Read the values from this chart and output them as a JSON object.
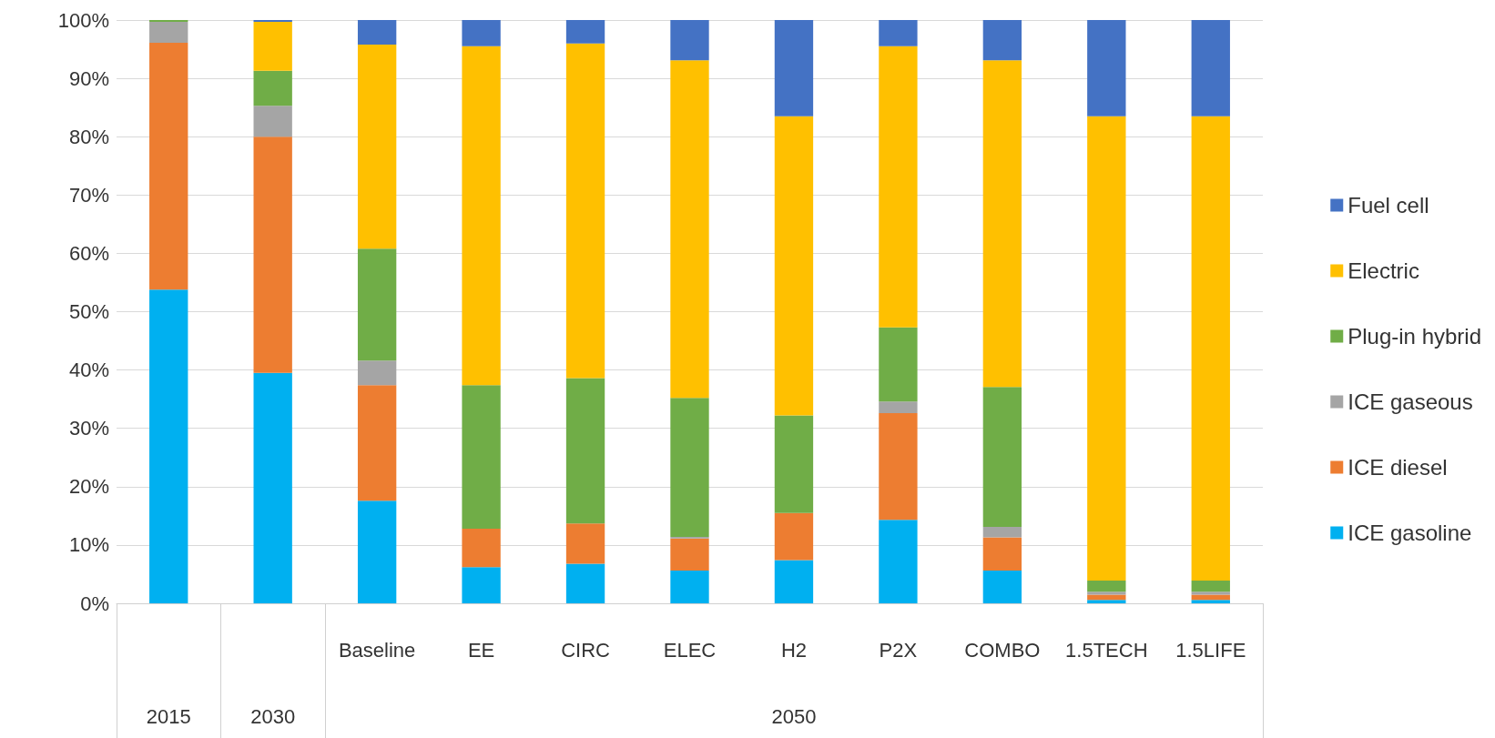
{
  "chart_data": {
    "type": "bar",
    "stacked": true,
    "grid": "y",
    "legend": "right",
    "categories": [
      null,
      null,
      "Baseline",
      "EE",
      "CIRC",
      "ELEC",
      "H2",
      "P2X",
      "COMBO",
      "1.5TECH",
      "1.5LIFE"
    ],
    "annotations": [
      "2015",
      "2030",
      "2050"
    ],
    "ylim": [
      0,
      100
    ],
    "yticks": [
      {
        "value": 0,
        "label": "0%"
      },
      {
        "value": 10,
        "label": "10%"
      },
      {
        "value": 20,
        "label": "20%"
      },
      {
        "value": 30,
        "label": "30%"
      },
      {
        "value": 40,
        "label": "40%"
      },
      {
        "value": 50,
        "label": "50%"
      },
      {
        "value": 60,
        "label": "60%"
      },
      {
        "value": 70,
        "label": "70%"
      },
      {
        "value": 80,
        "label": "80%"
      },
      {
        "value": 90,
        "label": "90%"
      },
      {
        "value": 100,
        "label": "100%"
      }
    ],
    "series": [
      {
        "name": "ICE gasoline",
        "color": "#00b0f0",
        "values": [
          53.8,
          39.5,
          17.6,
          6.2,
          6.8,
          5.6,
          7.4,
          14.3,
          5.6,
          0.6,
          0.6
        ]
      },
      {
        "name": "ICE diesel",
        "color": "#ed7d31",
        "values": [
          42.3,
          40.5,
          19.8,
          6.6,
          6.9,
          5.5,
          8.1,
          18.3,
          5.7,
          0.9,
          0.9
        ]
      },
      {
        "name": "ICE gaseous",
        "color": "#a5a5a5",
        "values": [
          3.6,
          5.3,
          4.2,
          0,
          0,
          0.3,
          0,
          2.0,
          1.8,
          0.5,
          0.5
        ]
      },
      {
        "name": "Plug-in hybrid",
        "color": "#70ad47",
        "values": [
          0.3,
          6.0,
          19.2,
          24.6,
          24.9,
          23.8,
          16.7,
          12.7,
          24.0,
          1.9,
          1.9
        ]
      },
      {
        "name": "Electric",
        "color": "#ffc000",
        "values": [
          0,
          8.4,
          35.0,
          58.1,
          57.4,
          57.9,
          51.3,
          48.2,
          56.0,
          79.6,
          79.6
        ]
      },
      {
        "name": "Fuel cell",
        "color": "#4472c4",
        "values": [
          0,
          0.3,
          4.2,
          4.5,
          4.0,
          6.9,
          16.5,
          4.5,
          6.9,
          16.5,
          16.5
        ]
      }
    ]
  }
}
